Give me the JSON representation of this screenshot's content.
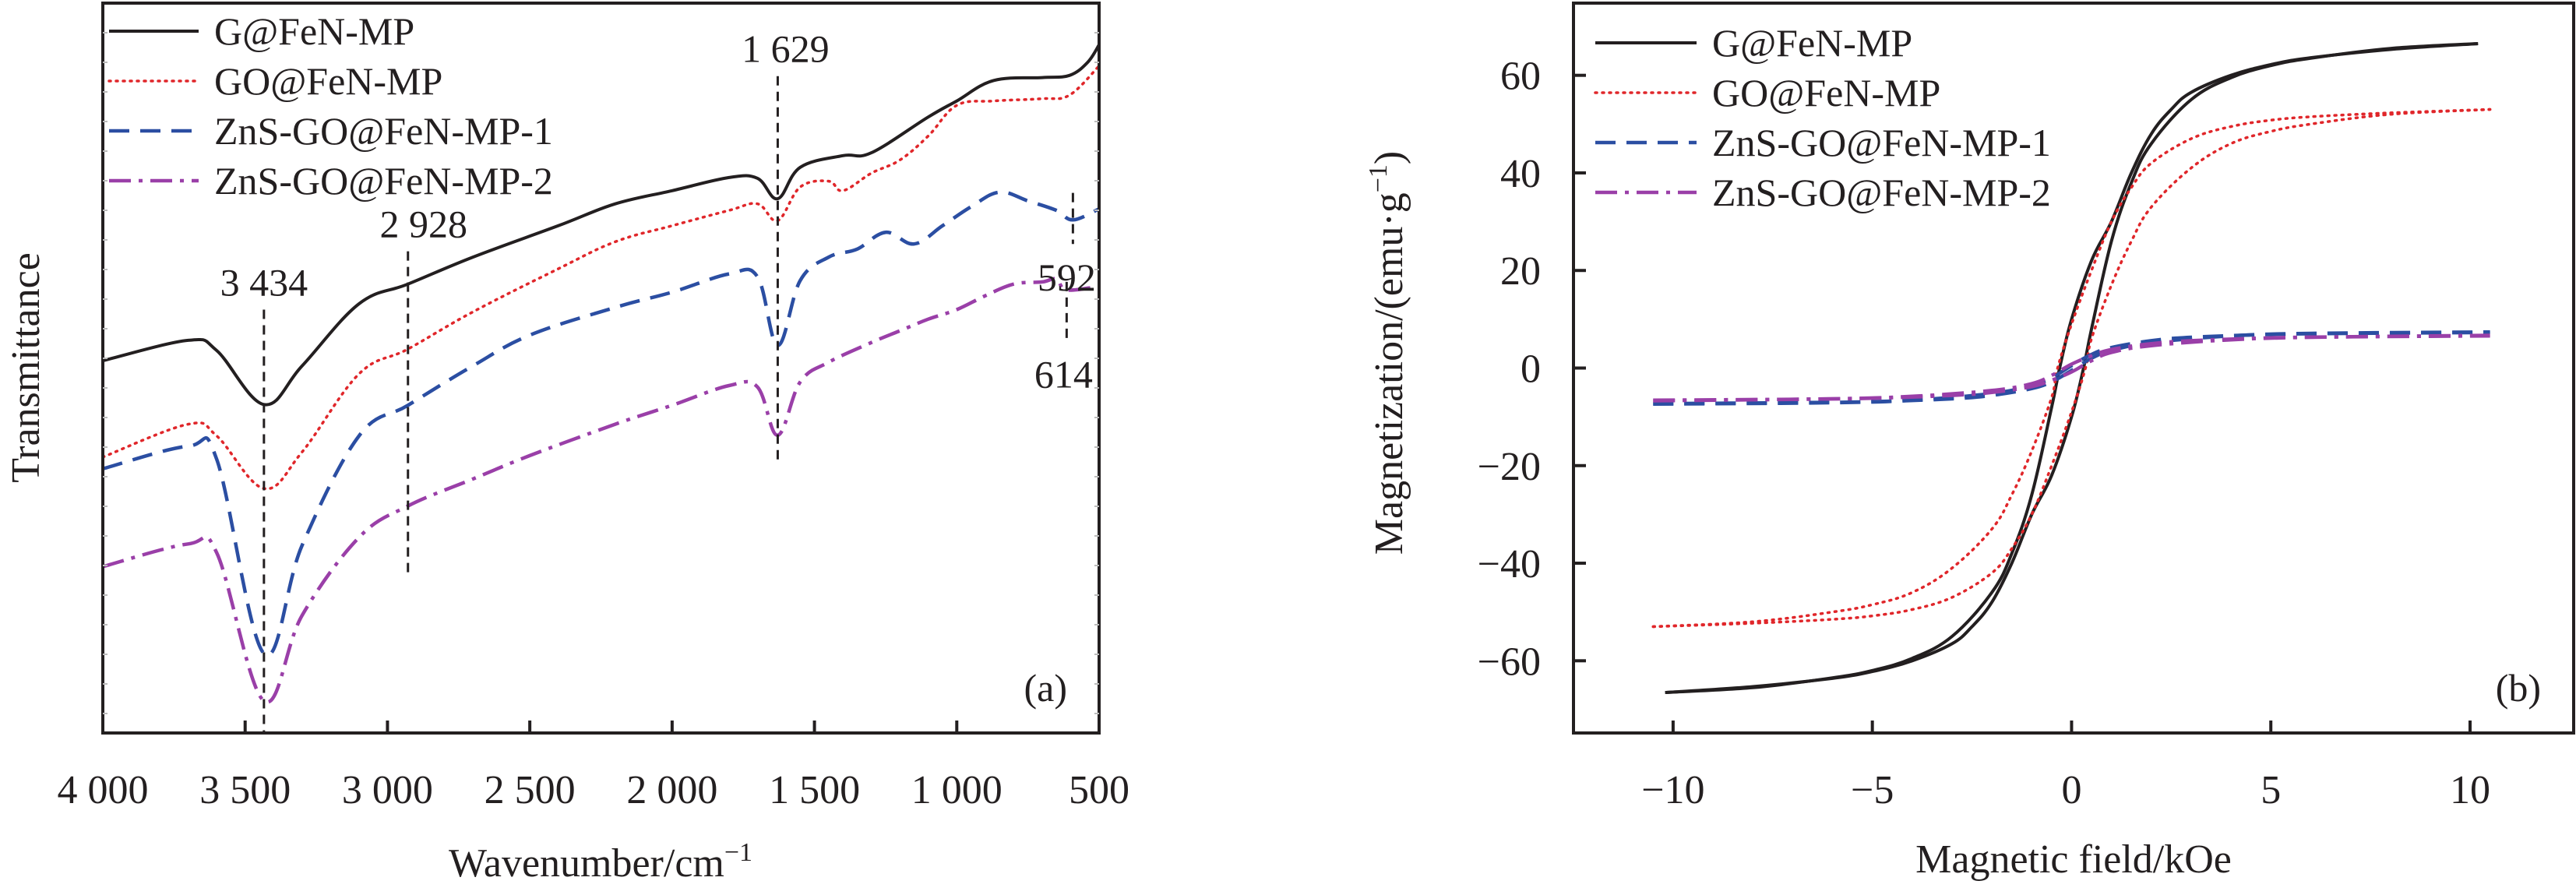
{
  "figure": {
    "colors": {
      "axis": "#231f20",
      "series": [
        "#231f20",
        "#e0262a",
        "#2b4ea2",
        "#9a3fa8"
      ],
      "guide": "#231f20"
    }
  },
  "chart_data": [
    {
      "panel": "(a)",
      "type": "line",
      "title": "",
      "xlabel": "Wavenumber/cm",
      "xlabel_superscript": "−1",
      "ylabel": "Transmittance",
      "xlim": [
        4000,
        500
      ],
      "ylim": [
        0,
        100
      ],
      "y_units": "arbitrary (no y tick labels shown)",
      "x_ticks": [
        4000,
        3500,
        3000,
        2500,
        2000,
        1500,
        1000,
        500
      ],
      "x_tick_labels": [
        "4 000",
        "3 500",
        "3 000",
        "2 500",
        "2 000",
        "1 500",
        "1 000",
        "500"
      ],
      "grid": false,
      "legend_position": "top-left",
      "series": [
        {
          "name": "G@FeN-MP",
          "style": "solid",
          "x": [
            4000,
            3700,
            3600,
            3434,
            3300,
            3100,
            2928,
            2700,
            2400,
            2200,
            2000,
            1800,
            1700,
            1629,
            1550,
            1400,
            1300,
            1100,
            1000,
            870,
            700,
            604,
            540,
            500
          ],
          "y": [
            51.0,
            53.8,
            52.4,
            45.0,
            50.3,
            58.8,
            61.5,
            65.2,
            69.5,
            72.5,
            74.3,
            76.1,
            76.0,
            73.2,
            77.5,
            79.1,
            79.5,
            84.4,
            86.6,
            89.4,
            89.8,
            90.1,
            91.9,
            94.3
          ]
        },
        {
          "name": "GO@FeN-MP",
          "style": "dotted",
          "x": [
            4000,
            3700,
            3600,
            3434,
            3300,
            3100,
            2928,
            2700,
            2400,
            2200,
            2000,
            1800,
            1700,
            1629,
            1550,
            1450,
            1400,
            1300,
            1200,
            1100,
            1000,
            870,
            700,
            604,
            500
          ],
          "y": [
            37.8,
            42.3,
            40.7,
            33.5,
            38.5,
            49.2,
            52.6,
            57.7,
            63.6,
            67.3,
            69.5,
            71.6,
            72.5,
            70.2,
            74.8,
            75.6,
            74.3,
            76.7,
            78.5,
            81.8,
            86.0,
            86.6,
            86.9,
            87.4,
            91.4
          ]
        },
        {
          "name": "ZnS-GO@FeN-MP-1",
          "style": "dashed",
          "x": [
            4000,
            3700,
            3600,
            3434,
            3300,
            3100,
            2928,
            2700,
            2500,
            2200,
            2000,
            1800,
            1700,
            1629,
            1550,
            1450,
            1350,
            1250,
            1150,
            1050,
            950,
            850,
            750,
            650,
            592,
            500
          ],
          "y": [
            36.2,
            39.3,
            37.5,
            10.9,
            25.7,
            40.7,
            44.9,
            50.3,
            54.5,
            58.3,
            60.4,
            62.9,
            62.5,
            53.1,
            62.0,
            65.2,
            66.3,
            68.6,
            67.0,
            69.5,
            72.1,
            74.1,
            72.9,
            71.6,
            70.3,
            71.8
          ]
        },
        {
          "name": "ZnS-GO@FeN-MP-2",
          "style": "dash-dot",
          "x": [
            4000,
            3700,
            3600,
            3434,
            3300,
            3100,
            2928,
            2700,
            2500,
            2200,
            2000,
            1800,
            1700,
            1629,
            1550,
            1450,
            1300,
            1200,
            1100,
            1000,
            900,
            800,
            700,
            650,
            614,
            500
          ],
          "y": [
            22.8,
            25.9,
            24.7,
            4.4,
            16.1,
            26.8,
            31.1,
            34.8,
            38.0,
            42.3,
            44.9,
            47.6,
            47.4,
            40.8,
            48.1,
            50.8,
            53.5,
            55.1,
            56.7,
            58.0,
            59.9,
            61.5,
            61.8,
            62.2,
            60.7,
            61.2
          ]
        }
      ],
      "annotations": [
        {
          "label": "3 434",
          "x": 3434,
          "y_from": 0,
          "y_to": 58
        },
        {
          "label": "2 928",
          "x": 2928,
          "y_from": 22,
          "y_to": 66
        },
        {
          "label": "1 629",
          "x": 1629,
          "y_from": 37,
          "y_to": 90
        },
        {
          "label": "592",
          "x": 592,
          "y_from": 67,
          "y_to": 74
        },
        {
          "label": "614",
          "x": 614,
          "y_from": 53.5,
          "y_to": 61.8
        }
      ]
    },
    {
      "panel": "(b)",
      "type": "line",
      "title": "",
      "xlabel": "Magnetic field/kOe",
      "ylabel": "Magnetization/(emu·g",
      "ylabel_superscript": "−1",
      "ylabel_close": ")",
      "xlim": [
        -12.5,
        12.6
      ],
      "ylim": [
        -74.8,
        74.8
      ],
      "x_ticks": [
        -10,
        -5,
        0,
        5,
        10
      ],
      "x_tick_labels": [
        "−10",
        "−5",
        "0",
        "5",
        "10"
      ],
      "y_ticks": [
        60,
        40,
        20,
        0,
        -20,
        -40,
        -60
      ],
      "y_tick_labels": [
        "60",
        "40",
        "20",
        "0",
        "−20",
        "−40",
        "−60"
      ],
      "grid": false,
      "legend_position": "top-left",
      "series": [
        {
          "name": "G@FeN-MP",
          "style": "solid",
          "descending_branch": {
            "x": [
              -10.2,
              -8,
              -6,
              -5,
              -4,
              -3,
              -2,
              -1.5,
              -1,
              -0.5,
              -0.3,
              0,
              0.5,
              1,
              1.5,
              2,
              2.5,
              3,
              4,
              5,
              6,
              8,
              10.2
            ],
            "y": [
              -66.5,
              -65.5,
              -63.5,
              -62,
              -59.5,
              -55,
              -46,
              -38,
              -26,
              -8,
              0,
              10,
              22,
              30,
              40,
              48,
              53,
              56.5,
              60,
              62.2,
              63.6,
              65.3,
              66.5
            ]
          }
        },
        {
          "name": "GO@FeN-MP",
          "style": "dotted",
          "descending_branch": {
            "x": [
              -10.5,
              -8,
              -6,
              -5,
              -4,
              -3,
              -2,
              -1.5,
              -1,
              -0.5,
              -0.35,
              0,
              0.5,
              1,
              1.5,
              2,
              3,
              4,
              5,
              6,
              8,
              10.5
            ],
            "y": [
              -53,
              -52,
              -50,
              -48.5,
              -46,
              -41,
              -33,
              -26,
              -17,
              -6,
              0,
              9,
              20,
              30,
              37,
              42,
              47,
              49.5,
              50.8,
              51.5,
              52.3,
              53
            ]
          }
        },
        {
          "name": "ZnS-GO@FeN-MP-1",
          "style": "dashed",
          "descending_branch": {
            "x": [
              -10.5,
              -6,
              -4,
              -2,
              -1,
              -0.5,
              0,
              0.5,
              1,
              2,
              3,
              5,
              7,
              10.5
            ],
            "y": [
              -7.4,
              -7.1,
              -6.6,
              -5.2,
              -3.6,
              -2.0,
              0.5,
              2.8,
              4.2,
              5.6,
              6.3,
              6.9,
              7.1,
              7.3
            ]
          }
        },
        {
          "name": "ZnS-GO@FeN-MP-2",
          "style": "dash-dot",
          "descending_branch": {
            "x": [
              -10.5,
              -6,
              -4,
              -2,
              -1,
              -0.5,
              0,
              0.5,
              1,
              2,
              3,
              5,
              7,
              10.5
            ],
            "y": [
              -6.7,
              -6.3,
              -5.8,
              -4.6,
              -3.2,
              -1.5,
              0.8,
              2.5,
              3.8,
              5.0,
              5.6,
              6.2,
              6.4,
              6.6
            ]
          }
        }
      ],
      "note": "ascending branch is the point-symmetric mirror of the descending branch: M_asc(H) = -M_desc(-H)"
    }
  ]
}
